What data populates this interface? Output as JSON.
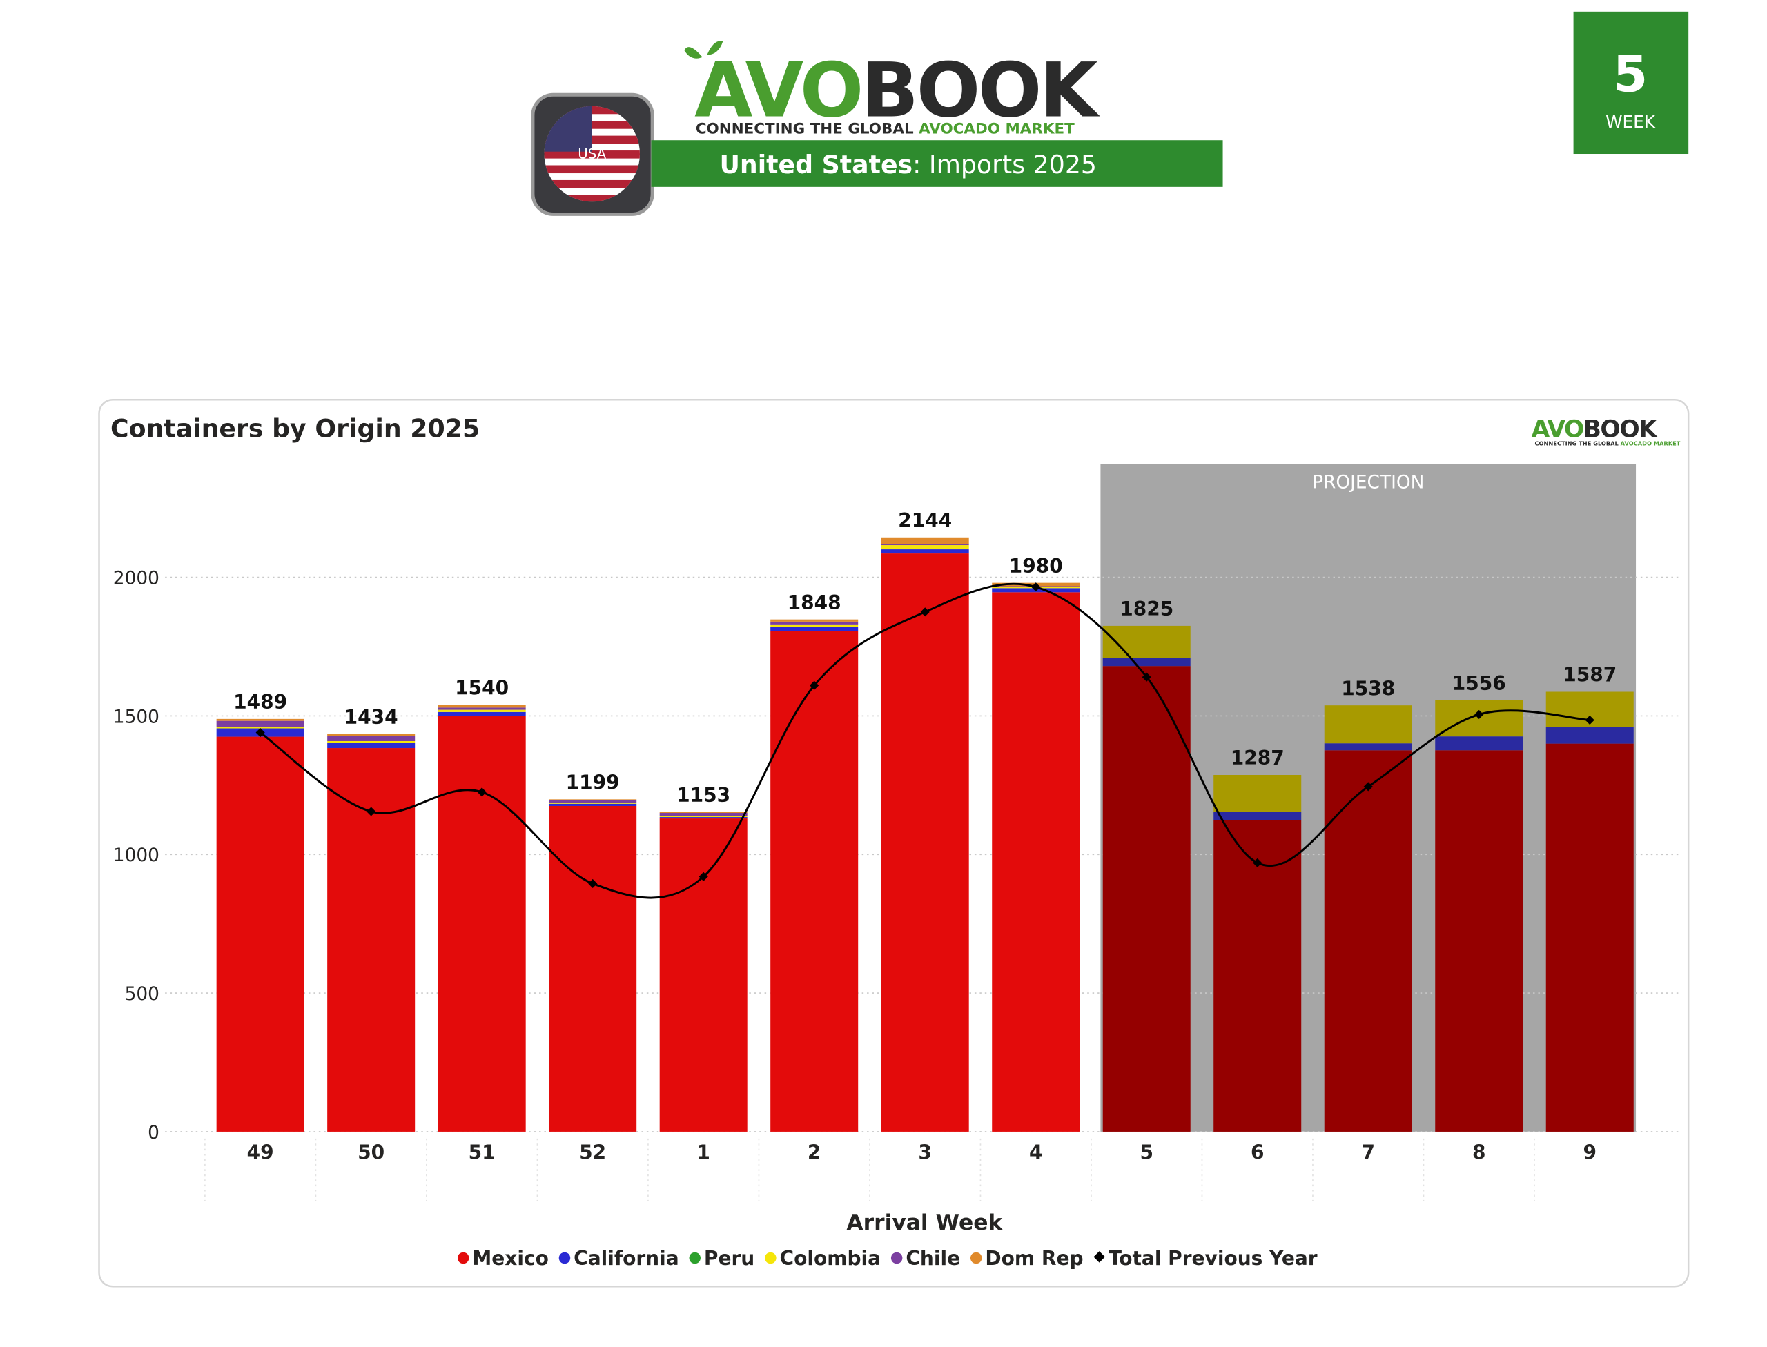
{
  "header": {
    "logo_avo": "AVO",
    "logo_book": "BOOK",
    "tagline_1": "CONNECTING THE GLOBAL ",
    "tagline_2": "AVOCADO MARKET",
    "flag_label": "USA",
    "banner_country": "United States",
    "banner_rest": ": Imports 2025",
    "week_number": "5",
    "week_label": "WEEK"
  },
  "chart_data": {
    "type": "stacked_bar_line",
    "title": "Containers by Origin 2025",
    "x_label": "Arrival Week",
    "categories": [
      "49",
      "50",
      "51",
      "52",
      "1",
      "2",
      "3",
      "4",
      "5",
      "6",
      "7",
      "8",
      "9"
    ],
    "series": [
      {
        "name": "Mexico",
        "color": "#e30b0b",
        "projection_color": "#950000",
        "values": [
          1425,
          1384,
          1499,
          1175,
          1130,
          1807,
          2086,
          1946,
          1680,
          1125,
          1376,
          1376,
          1400
        ]
      },
      {
        "name": "California",
        "color": "#2a2ad4",
        "projection_color": "#2a2aa0",
        "values": [
          30,
          20,
          15,
          8,
          5,
          15,
          15,
          15,
          30,
          30,
          25,
          50,
          60
        ]
      },
      {
        "name": "Peru",
        "color": "#2ca02c",
        "projection_color": "#1f6e1f",
        "values": [
          0,
          0,
          0,
          0,
          0,
          0,
          0,
          0,
          0,
          0,
          0,
          0,
          0
        ]
      },
      {
        "name": "Colombia",
        "color": "#f5e50a",
        "projection_color": "#a89a00",
        "values": [
          5,
          5,
          8,
          2,
          3,
          8,
          15,
          5,
          115,
          132,
          137,
          130,
          127
        ]
      },
      {
        "name": "Chile",
        "color": "#7b3fa0",
        "projection_color": "#4f2868",
        "values": [
          22,
          18,
          8,
          12,
          12,
          10,
          5,
          2,
          0,
          0,
          0,
          0,
          0
        ]
      },
      {
        "name": "Dom Rep",
        "color": "#e08a2c",
        "projection_color": "#8f5418",
        "values": [
          7,
          7,
          10,
          2,
          3,
          8,
          23,
          12,
          0,
          0,
          0,
          0,
          0
        ]
      },
      {
        "name": "Total Previous Year",
        "color": "#000000",
        "type": "line",
        "values": [
          1440,
          1155,
          1225,
          895,
          920,
          1610,
          1875,
          1965,
          1640,
          970,
          1245,
          1505,
          1485
        ]
      }
    ],
    "totals": [
      1489,
      1434,
      1540,
      1199,
      1153,
      1848,
      2144,
      1980,
      1825,
      1287,
      1538,
      1556,
      1587
    ],
    "annotations": [
      {
        "text": "PROJECTION",
        "from": "5",
        "to": "9"
      }
    ],
    "ylim": [
      0,
      2400
    ],
    "yticks": [
      0,
      500,
      1000,
      1500,
      2000
    ],
    "grid": true
  }
}
